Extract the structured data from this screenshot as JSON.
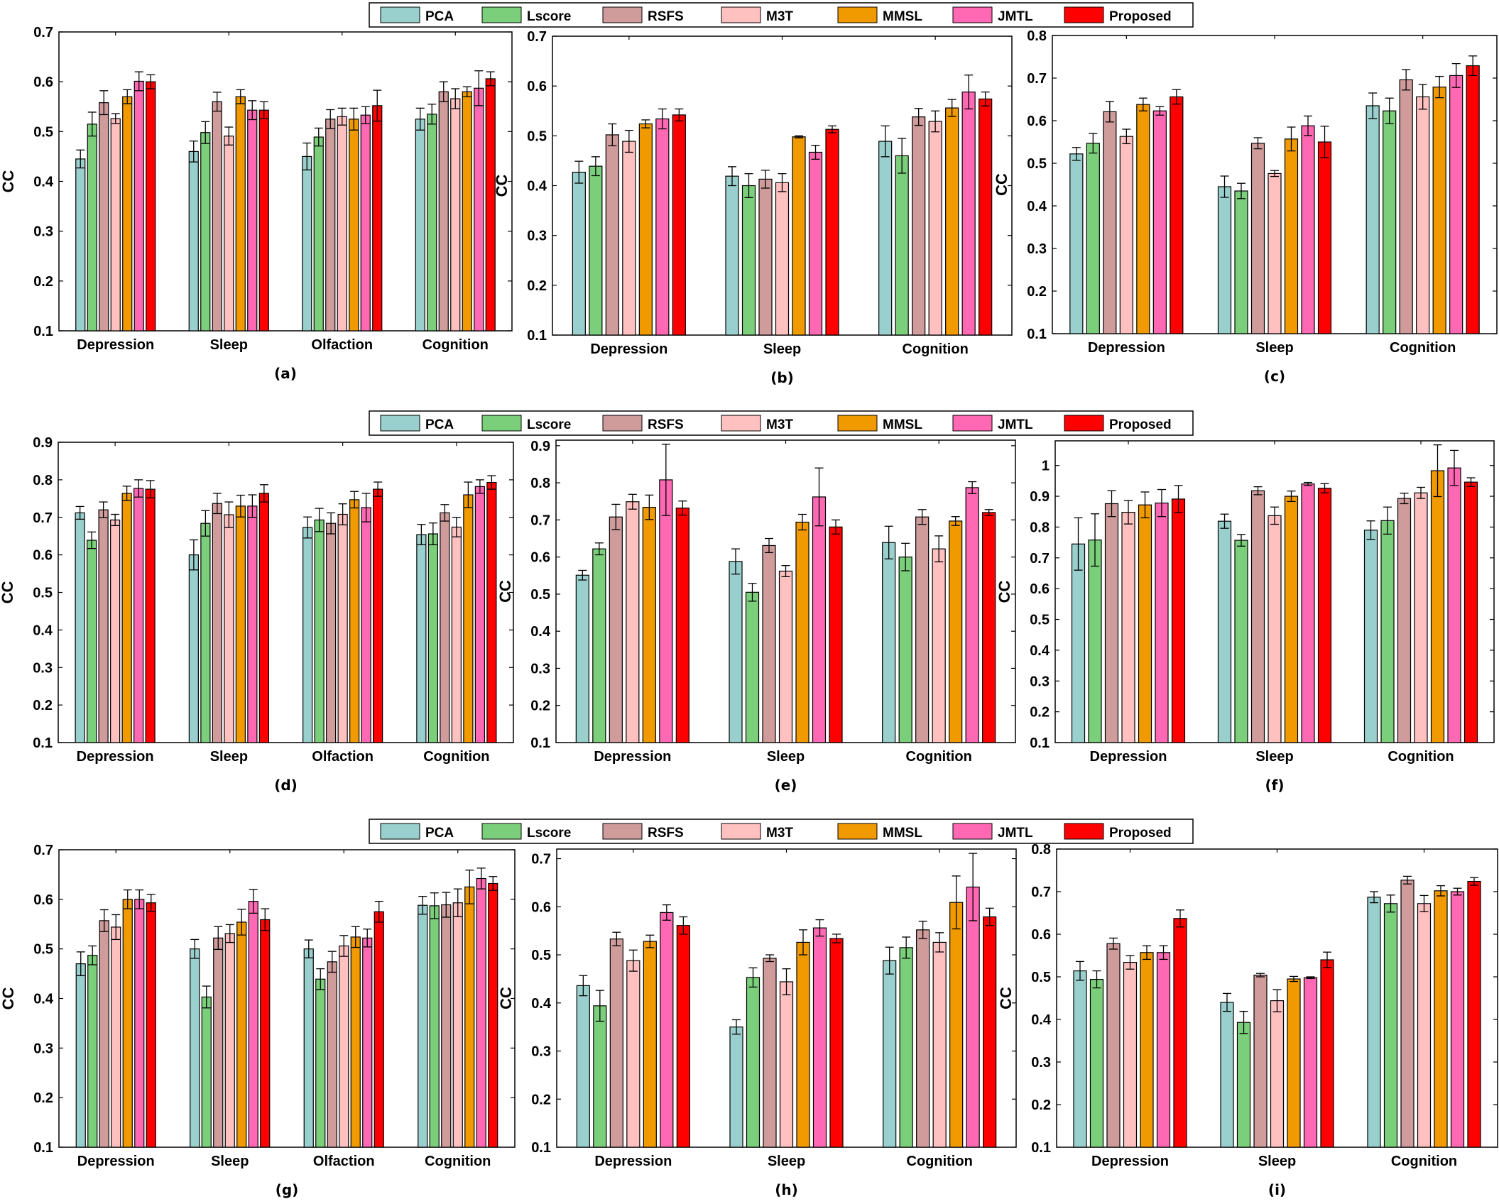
{
  "legend": {
    "entries": [
      {
        "name": "PCA",
        "color": "#99cfcc"
      },
      {
        "name": "Lscore",
        "color": "#7bcf7b"
      },
      {
        "name": "RSFS",
        "color": "#cf9b9b"
      },
      {
        "name": "M3T",
        "color": "#ffc0c0"
      },
      {
        "name": "MMSL",
        "color": "#f09a00"
      },
      {
        "name": "JMTL",
        "color": "#ff69b4"
      },
      {
        "name": "Proposed",
        "color": "#ff0000"
      }
    ]
  },
  "chart_data": [
    {
      "id": "a",
      "panel_label": "(a)",
      "type": "bar",
      "ylabel": "CC",
      "ylim": [
        0.1,
        0.7
      ],
      "yticks": [
        0.1,
        0.2,
        0.3,
        0.4,
        0.5,
        0.6,
        0.7
      ],
      "categories": [
        "Depression",
        "Sleep",
        "Olfaction",
        "Cognition"
      ],
      "series": [
        {
          "name": "PCA",
          "values": [
            0.445,
            0.46,
            0.45,
            0.525
          ],
          "errors": [
            0.018,
            0.021,
            0.027,
            0.022
          ]
        },
        {
          "name": "Lscore",
          "values": [
            0.515,
            0.498,
            0.489,
            0.535
          ],
          "errors": [
            0.024,
            0.022,
            0.018,
            0.02
          ]
        },
        {
          "name": "RSFS",
          "values": [
            0.558,
            0.56,
            0.525,
            0.58
          ],
          "errors": [
            0.024,
            0.019,
            0.019,
            0.02
          ]
        },
        {
          "name": "M3T",
          "values": [
            0.526,
            0.491,
            0.53,
            0.566
          ],
          "errors": [
            0.01,
            0.018,
            0.017,
            0.02
          ]
        },
        {
          "name": "MMSL",
          "values": [
            0.57,
            0.57,
            0.525,
            0.58
          ],
          "errors": [
            0.014,
            0.014,
            0.022,
            0.01
          ]
        },
        {
          "name": "JMTL",
          "values": [
            0.601,
            0.543,
            0.533,
            0.587
          ],
          "errors": [
            0.019,
            0.019,
            0.017,
            0.035
          ]
        },
        {
          "name": "Proposed",
          "values": [
            0.6,
            0.543,
            0.552,
            0.606
          ],
          "errors": [
            0.014,
            0.017,
            0.031,
            0.014
          ]
        }
      ]
    },
    {
      "id": "b",
      "panel_label": "(b)",
      "type": "bar",
      "ylabel": "CC",
      "ylim": [
        0.1,
        0.7
      ],
      "yticks": [
        0.1,
        0.2,
        0.3,
        0.4,
        0.5,
        0.6,
        0.7
      ],
      "categories": [
        "Depression",
        "Sleep",
        "Cognition"
      ],
      "series": [
        {
          "name": "PCA",
          "values": [
            0.427,
            0.419,
            0.489
          ],
          "errors": [
            0.022,
            0.019,
            0.031
          ]
        },
        {
          "name": "Lscore",
          "values": [
            0.439,
            0.4,
            0.46
          ],
          "errors": [
            0.019,
            0.024,
            0.035
          ]
        },
        {
          "name": "RSFS",
          "values": [
            0.502,
            0.413,
            0.538
          ],
          "errors": [
            0.022,
            0.018,
            0.017
          ]
        },
        {
          "name": "M3T",
          "values": [
            0.489,
            0.406,
            0.529
          ],
          "errors": [
            0.022,
            0.018,
            0.021
          ]
        },
        {
          "name": "MMSL",
          "values": [
            0.524,
            0.498,
            0.556
          ],
          "errors": [
            0.008,
            0.002,
            0.017
          ]
        },
        {
          "name": "JMTL",
          "values": [
            0.534,
            0.467,
            0.588
          ],
          "errors": [
            0.02,
            0.014,
            0.034
          ]
        },
        {
          "name": "Proposed",
          "values": [
            0.542,
            0.513,
            0.574
          ],
          "errors": [
            0.012,
            0.007,
            0.014
          ]
        }
      ]
    },
    {
      "id": "c",
      "panel_label": "(c)",
      "type": "bar",
      "ylabel": "CC",
      "ylim": [
        0.1,
        0.8
      ],
      "yticks": [
        0.1,
        0.2,
        0.3,
        0.4,
        0.5,
        0.6,
        0.7,
        0.8
      ],
      "categories": [
        "Depression",
        "Sleep",
        "Cognition"
      ],
      "series": [
        {
          "name": "PCA",
          "values": [
            0.522,
            0.445,
            0.635
          ],
          "errors": [
            0.015,
            0.025,
            0.03
          ]
        },
        {
          "name": "Lscore",
          "values": [
            0.547,
            0.435,
            0.623
          ],
          "errors": [
            0.023,
            0.018,
            0.03
          ]
        },
        {
          "name": "RSFS",
          "values": [
            0.621,
            0.547,
            0.696
          ],
          "errors": [
            0.024,
            0.013,
            0.024
          ]
        },
        {
          "name": "M3T",
          "values": [
            0.563,
            0.476,
            0.656
          ],
          "errors": [
            0.017,
            0.007,
            0.029
          ]
        },
        {
          "name": "MMSL",
          "values": [
            0.638,
            0.557,
            0.679
          ],
          "errors": [
            0.015,
            0.028,
            0.025
          ]
        },
        {
          "name": "JMTL",
          "values": [
            0.623,
            0.588,
            0.706
          ],
          "errors": [
            0.01,
            0.023,
            0.028
          ]
        },
        {
          "name": "Proposed",
          "values": [
            0.656,
            0.55,
            0.729
          ],
          "errors": [
            0.017,
            0.037,
            0.023
          ]
        }
      ]
    },
    {
      "id": "d",
      "panel_label": "(d)",
      "type": "bar",
      "ylabel": "CC",
      "ylim": [
        0.1,
        0.9
      ],
      "yticks": [
        0.1,
        0.2,
        0.3,
        0.4,
        0.5,
        0.6,
        0.7,
        0.8,
        0.9
      ],
      "categories": [
        "Depression",
        "Sleep",
        "Olfaction",
        "Cognition"
      ],
      "series": [
        {
          "name": "PCA",
          "values": [
            0.712,
            0.6,
            0.673,
            0.654
          ],
          "errors": [
            0.017,
            0.04,
            0.028,
            0.027
          ]
        },
        {
          "name": "Lscore",
          "values": [
            0.639,
            0.684,
            0.693,
            0.656
          ],
          "errors": [
            0.022,
            0.034,
            0.031,
            0.029
          ]
        },
        {
          "name": "RSFS",
          "values": [
            0.72,
            0.737,
            0.684,
            0.712
          ],
          "errors": [
            0.021,
            0.027,
            0.028,
            0.022
          ]
        },
        {
          "name": "M3T",
          "values": [
            0.693,
            0.707,
            0.708,
            0.674
          ],
          "errors": [
            0.015,
            0.034,
            0.028,
            0.026
          ]
        },
        {
          "name": "MMSL",
          "values": [
            0.764,
            0.73,
            0.747,
            0.76
          ],
          "errors": [
            0.019,
            0.029,
            0.022,
            0.034
          ]
        },
        {
          "name": "JMTL",
          "values": [
            0.777,
            0.73,
            0.726,
            0.782
          ],
          "errors": [
            0.023,
            0.03,
            0.038,
            0.018
          ]
        },
        {
          "name": "Proposed",
          "values": [
            0.775,
            0.764,
            0.775,
            0.793
          ],
          "errors": [
            0.023,
            0.023,
            0.019,
            0.018
          ]
        }
      ]
    },
    {
      "id": "e",
      "panel_label": "(e)",
      "type": "bar",
      "ylabel": "CC",
      "ylim": [
        0.1,
        0.915
      ],
      "yticks": [
        0.1,
        0.2,
        0.3,
        0.4,
        0.5,
        0.6,
        0.7,
        0.8,
        0.9
      ],
      "categories": [
        "Depression",
        "Sleep",
        "Cognition"
      ],
      "series": [
        {
          "name": "PCA",
          "values": [
            0.551,
            0.588,
            0.639
          ],
          "errors": [
            0.013,
            0.034,
            0.044
          ]
        },
        {
          "name": "Lscore",
          "values": [
            0.622,
            0.505,
            0.6
          ],
          "errors": [
            0.016,
            0.024,
            0.037
          ]
        },
        {
          "name": "RSFS",
          "values": [
            0.708,
            0.631,
            0.708
          ],
          "errors": [
            0.034,
            0.019,
            0.02
          ]
        },
        {
          "name": "M3T",
          "values": [
            0.749,
            0.562,
            0.622
          ],
          "errors": [
            0.02,
            0.015,
            0.035
          ]
        },
        {
          "name": "MMSL",
          "values": [
            0.734,
            0.694,
            0.697
          ],
          "errors": [
            0.033,
            0.021,
            0.012
          ]
        },
        {
          "name": "JMTL",
          "values": [
            0.808,
            0.762,
            0.787
          ],
          "errors": [
            0.096,
            0.078,
            0.016
          ]
        },
        {
          "name": "Proposed",
          "values": [
            0.732,
            0.681,
            0.72
          ],
          "errors": [
            0.019,
            0.019,
            0.008
          ]
        }
      ]
    },
    {
      "id": "f",
      "panel_label": "(f)",
      "type": "bar",
      "ylabel": "CC",
      "ylim": [
        0.1,
        1.08
      ],
      "yticks": [
        0.1,
        0.2,
        0.3,
        0.4,
        0.5,
        0.6,
        0.7,
        0.8,
        0.9,
        1
      ],
      "categories": [
        "Depression",
        "Sleep",
        "Cognition"
      ],
      "series": [
        {
          "name": "PCA",
          "values": [
            0.745,
            0.819,
            0.79
          ],
          "errors": [
            0.085,
            0.023,
            0.03
          ]
        },
        {
          "name": "Lscore",
          "values": [
            0.758,
            0.757,
            0.821
          ],
          "errors": [
            0.085,
            0.019,
            0.044
          ]
        },
        {
          "name": "RSFS",
          "values": [
            0.876,
            0.918,
            0.893
          ],
          "errors": [
            0.042,
            0.013,
            0.017
          ]
        },
        {
          "name": "M3T",
          "values": [
            0.848,
            0.837,
            0.911
          ],
          "errors": [
            0.038,
            0.028,
            0.018
          ]
        },
        {
          "name": "MMSL",
          "values": [
            0.872,
            0.9,
            0.983
          ],
          "errors": [
            0.042,
            0.017,
            0.084
          ]
        },
        {
          "name": "JMTL",
          "values": [
            0.878,
            0.94,
            0.992
          ],
          "errors": [
            0.044,
            0.005,
            0.057
          ]
        },
        {
          "name": "Proposed",
          "values": [
            0.891,
            0.926,
            0.946
          ],
          "errors": [
            0.044,
            0.015,
            0.014
          ]
        }
      ]
    },
    {
      "id": "g",
      "panel_label": "(g)",
      "type": "bar",
      "ylabel": "CC",
      "ylim": [
        0.1,
        0.7
      ],
      "yticks": [
        0.1,
        0.2,
        0.3,
        0.4,
        0.5,
        0.6,
        0.7
      ],
      "categories": [
        "Depression",
        "Sleep",
        "Olfaction",
        "Cognition"
      ],
      "series": [
        {
          "name": "PCA",
          "values": [
            0.47,
            0.5,
            0.5,
            0.588
          ],
          "errors": [
            0.024,
            0.019,
            0.018,
            0.018
          ]
        },
        {
          "name": "Lscore",
          "values": [
            0.487,
            0.403,
            0.439,
            0.587
          ],
          "errors": [
            0.019,
            0.022,
            0.021,
            0.026
          ]
        },
        {
          "name": "RSFS",
          "values": [
            0.557,
            0.522,
            0.474,
            0.589
          ],
          "errors": [
            0.022,
            0.023,
            0.021,
            0.025
          ]
        },
        {
          "name": "M3T",
          "values": [
            0.544,
            0.531,
            0.506,
            0.593
          ],
          "errors": [
            0.025,
            0.018,
            0.021,
            0.028
          ]
        },
        {
          "name": "MMSL",
          "values": [
            0.6,
            0.554,
            0.524,
            0.625
          ],
          "errors": [
            0.019,
            0.026,
            0.021,
            0.034
          ]
        },
        {
          "name": "JMTL",
          "values": [
            0.6,
            0.596,
            0.522,
            0.642
          ],
          "errors": [
            0.019,
            0.024,
            0.018,
            0.021
          ]
        },
        {
          "name": "Proposed",
          "values": [
            0.593,
            0.559,
            0.575,
            0.632
          ],
          "errors": [
            0.017,
            0.022,
            0.021,
            0.014
          ]
        }
      ]
    },
    {
      "id": "h",
      "panel_label": "(h)",
      "type": "bar",
      "ylabel": "CC",
      "ylim": [
        0.1,
        0.72
      ],
      "yticks": [
        0.1,
        0.2,
        0.3,
        0.4,
        0.5,
        0.6,
        0.7
      ],
      "categories": [
        "Depression",
        "Sleep",
        "Cognition"
      ],
      "series": [
        {
          "name": "PCA",
          "values": [
            0.436,
            0.35,
            0.488
          ],
          "errors": [
            0.021,
            0.015,
            0.028
          ]
        },
        {
          "name": "Lscore",
          "values": [
            0.394,
            0.453,
            0.515
          ],
          "errors": [
            0.032,
            0.02,
            0.022
          ]
        },
        {
          "name": "RSFS",
          "values": [
            0.533,
            0.493,
            0.552
          ],
          "errors": [
            0.014,
            0.007,
            0.018
          ]
        },
        {
          "name": "M3T",
          "values": [
            0.488,
            0.444,
            0.526
          ],
          "errors": [
            0.022,
            0.027,
            0.02
          ]
        },
        {
          "name": "MMSL",
          "values": [
            0.528,
            0.526,
            0.609
          ],
          "errors": [
            0.013,
            0.026,
            0.055
          ]
        },
        {
          "name": "JMTL",
          "values": [
            0.588,
            0.556,
            0.641
          ],
          "errors": [
            0.016,
            0.017,
            0.07
          ]
        },
        {
          "name": "Proposed",
          "values": [
            0.561,
            0.534,
            0.579
          ],
          "errors": [
            0.018,
            0.009,
            0.018
          ]
        }
      ]
    },
    {
      "id": "i",
      "panel_label": "(i)",
      "type": "bar",
      "ylabel": "CC",
      "ylim": [
        0.1,
        0.8
      ],
      "yticks": [
        0.1,
        0.2,
        0.3,
        0.4,
        0.5,
        0.6,
        0.7,
        0.8
      ],
      "categories": [
        "Depression",
        "Sleep",
        "Cognition"
      ],
      "series": [
        {
          "name": "PCA",
          "values": [
            0.514,
            0.44,
            0.687
          ],
          "errors": [
            0.022,
            0.021,
            0.013
          ]
        },
        {
          "name": "Lscore",
          "values": [
            0.494,
            0.393,
            0.672
          ],
          "errors": [
            0.02,
            0.026,
            0.02
          ]
        },
        {
          "name": "RSFS",
          "values": [
            0.578,
            0.504,
            0.727
          ],
          "errors": [
            0.013,
            0.004,
            0.009
          ]
        },
        {
          "name": "M3T",
          "values": [
            0.534,
            0.444,
            0.672
          ],
          "errors": [
            0.016,
            0.026,
            0.019
          ]
        },
        {
          "name": "MMSL",
          "values": [
            0.557,
            0.495,
            0.702
          ],
          "errors": [
            0.016,
            0.006,
            0.012
          ]
        },
        {
          "name": "JMTL",
          "values": [
            0.557,
            0.498,
            0.7
          ],
          "errors": [
            0.016,
            0.002,
            0.008
          ]
        },
        {
          "name": "Proposed",
          "values": [
            0.637,
            0.54,
            0.724
          ],
          "errors": [
            0.02,
            0.018,
            0.009
          ]
        }
      ]
    }
  ]
}
